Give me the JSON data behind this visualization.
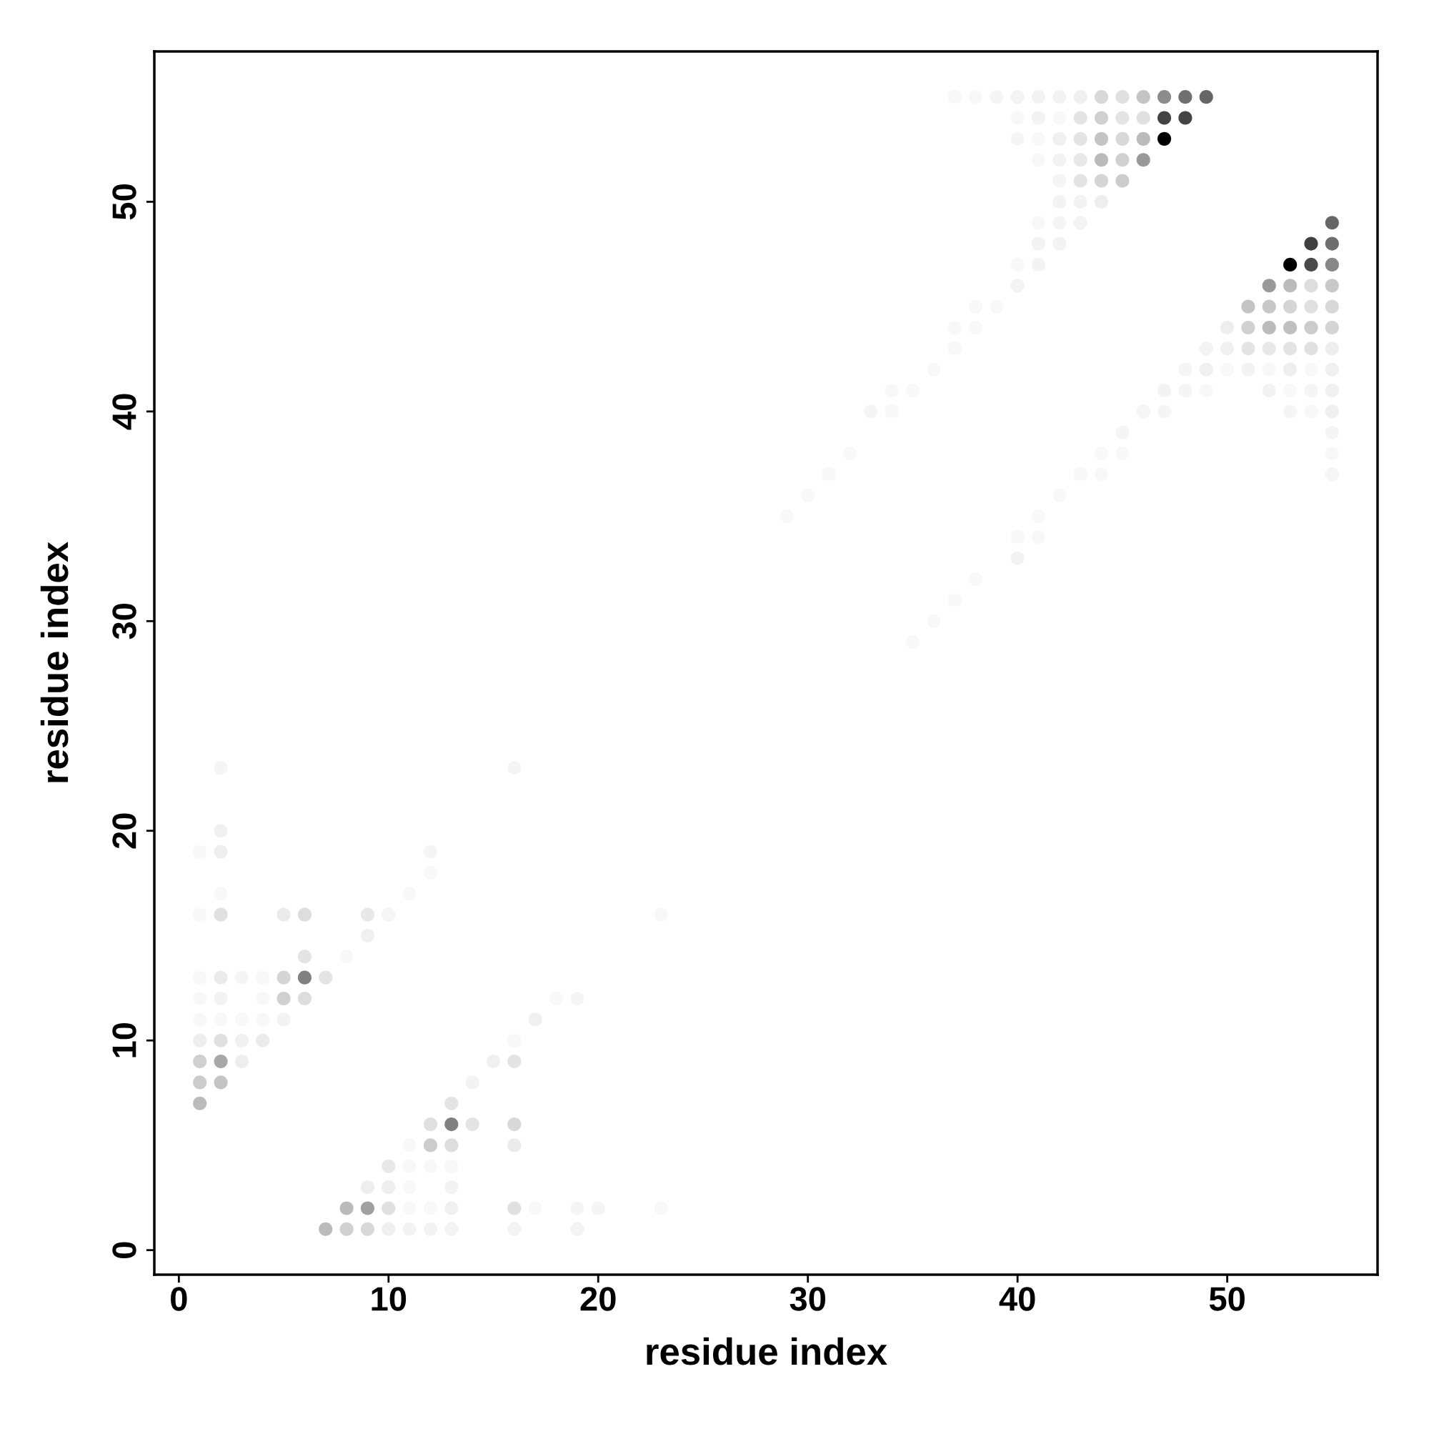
{
  "chart_data": {
    "type": "scatter",
    "xlabel": "residue index",
    "ylabel": "residue index",
    "xlim": [
      -1.17,
      57.17
    ],
    "ylim": [
      -1.17,
      57.17
    ],
    "xticks": [
      0,
      10,
      20,
      30,
      40,
      50
    ],
    "yticks": [
      0,
      10,
      20,
      30,
      40,
      50
    ],
    "grid": false,
    "marker": "circle",
    "series": [
      {
        "x": [
          2,
          16,
          2,
          1,
          2,
          12,
          12,
          2,
          11,
          1,
          2,
          5,
          6,
          9,
          10,
          23,
          9,
          6,
          8,
          1,
          2,
          3,
          4,
          5,
          6,
          7,
          1,
          2,
          4,
          5,
          6,
          18,
          19,
          1,
          2,
          3,
          4,
          5,
          17,
          1,
          2,
          3,
          4,
          16,
          1,
          2,
          3,
          15,
          16,
          1,
          2,
          14,
          1,
          13,
          12,
          13,
          14,
          16,
          11,
          12,
          13,
          16,
          10,
          11,
          12,
          13,
          9,
          10,
          11,
          13,
          8,
          9,
          10,
          11,
          12,
          13,
          16,
          17,
          19,
          20,
          23,
          7,
          8,
          9,
          10,
          11,
          12,
          13,
          16,
          19,
          29,
          30,
          31,
          32,
          33,
          34,
          34,
          35,
          36,
          37,
          37,
          38,
          38,
          39,
          40,
          40,
          41,
          35,
          36,
          37,
          38,
          40,
          40,
          41,
          41,
          42,
          43,
          44,
          44,
          45,
          45,
          46,
          47,
          47,
          37,
          38,
          39,
          40,
          41,
          42,
          43,
          44,
          45,
          46,
          47,
          48,
          49,
          40,
          41,
          42,
          43,
          44,
          45,
          46,
          47,
          48,
          40,
          41,
          42,
          43,
          44,
          45,
          46,
          47,
          41,
          42,
          43,
          44,
          45,
          46,
          42,
          43,
          44,
          45,
          42,
          43,
          44,
          41,
          42,
          43,
          41,
          42,
          55,
          54,
          55,
          53,
          54,
          55,
          52,
          53,
          54,
          55,
          51,
          52,
          53,
          54,
          55,
          50,
          51,
          52,
          53,
          54,
          55,
          49,
          50,
          51,
          52,
          53,
          54,
          55,
          48,
          49,
          50,
          51,
          52,
          53,
          54,
          55,
          48,
          49,
          52,
          53,
          54,
          55,
          53,
          54,
          55,
          55,
          55,
          55
        ],
        "values": [
          23,
          23,
          20,
          19,
          19,
          19,
          18,
          17,
          17,
          16,
          16,
          16,
          16,
          16,
          16,
          16,
          15,
          14,
          14,
          13,
          13,
          13,
          13,
          13,
          13,
          13,
          12,
          12,
          12,
          12,
          12,
          12,
          12,
          11,
          11,
          11,
          11,
          11,
          11,
          10,
          10,
          10,
          10,
          10,
          9,
          9,
          9,
          9,
          9,
          8,
          8,
          8,
          7,
          7,
          6,
          6,
          6,
          6,
          5,
          5,
          5,
          5,
          4,
          4,
          4,
          4,
          3,
          3,
          3,
          3,
          2,
          2,
          2,
          2,
          2,
          2,
          2,
          2,
          2,
          2,
          2,
          1,
          1,
          1,
          1,
          1,
          1,
          1,
          1,
          1,
          35,
          36,
          37,
          38,
          40,
          40,
          41,
          41,
          42,
          43,
          44,
          44,
          45,
          45,
          46,
          47,
          47,
          29,
          30,
          31,
          32,
          33,
          34,
          34,
          35,
          36,
          37,
          37,
          38,
          38,
          39,
          40,
          40,
          41,
          55,
          55,
          55,
          55,
          55,
          55,
          55,
          55,
          55,
          55,
          55,
          55,
          55,
          54,
          54,
          54,
          54,
          54,
          54,
          54,
          54,
          54,
          53,
          53,
          53,
          53,
          53,
          53,
          53,
          53,
          52,
          52,
          52,
          52,
          52,
          52,
          51,
          51,
          51,
          51,
          50,
          50,
          50,
          49,
          49,
          49,
          48,
          48,
          49,
          48,
          48,
          47,
          47,
          47,
          46,
          46,
          46,
          46,
          45,
          45,
          45,
          45,
          45,
          44,
          44,
          44,
          44,
          44,
          44,
          43,
          43,
          43,
          43,
          43,
          43,
          43,
          42,
          42,
          42,
          42,
          42,
          42,
          42,
          42,
          41,
          41,
          41,
          41,
          41,
          41,
          40,
          40,
          40,
          39,
          38,
          37
        ],
        "colors": [
          "#f5f5f5",
          "#f5f5f5",
          "#f0f0f0",
          "#f8f8f8",
          "#eeeeee",
          "#f5f5f5",
          "#f8f8f8",
          "#f8f8f8",
          "#f8f8f8",
          "#f8f8f8",
          "#e0e0e0",
          "#ebebeb",
          "#dddddd",
          "#e8e8e8",
          "#f5f5f5",
          "#f8f8f8",
          "#f0f0f0",
          "#e4e4e4",
          "#f8f8f8",
          "#f8f8f8",
          "#ebebeb",
          "#f5f5f5",
          "#f8f8f8",
          "#d5d5d5",
          "#808080",
          "#e4e4e4",
          "#f8f8f8",
          "#f3f3f3",
          "#f8f8f8",
          "#d0d0d0",
          "#dddddd",
          "#f8f8f8",
          "#f5f5f5",
          "#f8f8f8",
          "#f8f8f8",
          "#f8f8f8",
          "#f8f8f8",
          "#f3f3f3",
          "#f0f0f0",
          "#eeeeee",
          "#e0e0e0",
          "#f0f0f0",
          "#ebebeb",
          "#f8f8f8",
          "#d0d0d0",
          "#a8a8a8",
          "#eeeeee",
          "#f0f0f0",
          "#e4e4e4",
          "#cccccc",
          "#c4c4c4",
          "#f3f3f3",
          "#bbbbbb",
          "#e4e4e4",
          "#e0e0e0",
          "#808080",
          "#e4e4e4",
          "#d8d8d8",
          "#f8f8f8",
          "#cccccc",
          "#dddddd",
          "#ebebeb",
          "#e8e8e8",
          "#f8f8f8",
          "#f8f8f8",
          "#f8f8f8",
          "#eeeeee",
          "#eeeeee",
          "#f8f8f8",
          "#f3f3f3",
          "#bbbbbb",
          "#a0a0a0",
          "#e0e0e0",
          "#f8f8f8",
          "#f8f8f8",
          "#f0f0f0",
          "#e0e0e0",
          "#f8f8f8",
          "#f5f5f5",
          "#f5f5f5",
          "#f8f8f8",
          "#bbbbbb",
          "#d0d0d0",
          "#d8d8d8",
          "#f0f0f0",
          "#f3f3f3",
          "#f3f3f3",
          "#f3f3f3",
          "#f3f3f3",
          "#f3f3f3",
          "#f8f8f8",
          "#f8f8f8",
          "#f8f8f8",
          "#f8f8f8",
          "#f5f5f5",
          "#f8f8f8",
          "#f8f8f8",
          "#f8f8f8",
          "#f8f8f8",
          "#f8f8f8",
          "#f8f8f8",
          "#f8f8f8",
          "#f8f8f8",
          "#f8f8f8",
          "#f3f3f3",
          "#f8f8f8",
          "#f3f3f3",
          "#f8f8f8",
          "#f8f8f8",
          "#f8f8f8",
          "#f8f8f8",
          "#f3f3f3",
          "#f8f8f8",
          "#f8f8f8",
          "#f8f8f8",
          "#f8f8f8",
          "#f8f8f8",
          "#f8f8f8",
          "#f8f8f8",
          "#f8f8f8",
          "#f5f5f5",
          "#f5f5f5",
          "#f5f5f5",
          "#f3f3f3",
          "#f8f8f8",
          "#f8f8f8",
          "#f5f5f5",
          "#f3f3f3",
          "#f3f3f3",
          "#f3f3f3",
          "#f0f0f0",
          "#d8d8d8",
          "#e0e0e0",
          "#c4c4c4",
          "#8c8c8c",
          "#707070",
          "#666666",
          "#f8f8f8",
          "#f3f3f3",
          "#f8f8f8",
          "#e4e4e4",
          "#d0d0d0",
          "#e4e4e4",
          "#e0e0e0",
          "#444444",
          "#444444",
          "#f5f5f5",
          "#f8f8f8",
          "#f0f0f0",
          "#e4e4e4",
          "#c4c4c4",
          "#d8d8d8",
          "#bbbbbb",
          "#000000",
          "#f8f8f8",
          "#f3f3f3",
          "#e8e8e8",
          "#bbbbbb",
          "#d0d0d0",
          "#999999",
          "#f5f5f5",
          "#e4e4e4",
          "#d5d5d5",
          "#cccccc",
          "#f3f3f3",
          "#f3f3f3",
          "#eeeeee",
          "#f8f8f8",
          "#f5f5f5",
          "#f3f3f3",
          "#f3f3f3",
          "#f3f3f3",
          "#666666",
          "#404040",
          "#6e6e6e",
          "#000000",
          "#4a4a4a",
          "#888888",
          "#999999",
          "#bbbbbb",
          "#dddddd",
          "#c8c8c8",
          "#c4c4c4",
          "#c8c8c8",
          "#d5d5d5",
          "#e0e0e0",
          "#d8d8d8",
          "#eeeeee",
          "#d0d0d0",
          "#bbbbbb",
          "#c0c0c0",
          "#cccccc",
          "#d5d5d5",
          "#f3f3f3",
          "#f0f0f0",
          "#e4e4e4",
          "#e8e8e8",
          "#e4e4e4",
          "#e0e0e0",
          "#eeeeee",
          "#f5f5f5",
          "#f0f0f0",
          "#f8f8f8",
          "#f3f3f3",
          "#f8f8f8",
          "#eeeeee",
          "#f8f8f8",
          "#f0f0f0",
          "#f5f5f5",
          "#f8f8f8",
          "#f3f3f3",
          "#f8f8f8",
          "#f5f5f5",
          "#f0f0f0",
          "#f5f5f5",
          "#f8f8f8",
          "#f0f0f0",
          "#f5f5f5",
          "#f8f8f8",
          "#f5f5f5"
        ]
      }
    ]
  }
}
